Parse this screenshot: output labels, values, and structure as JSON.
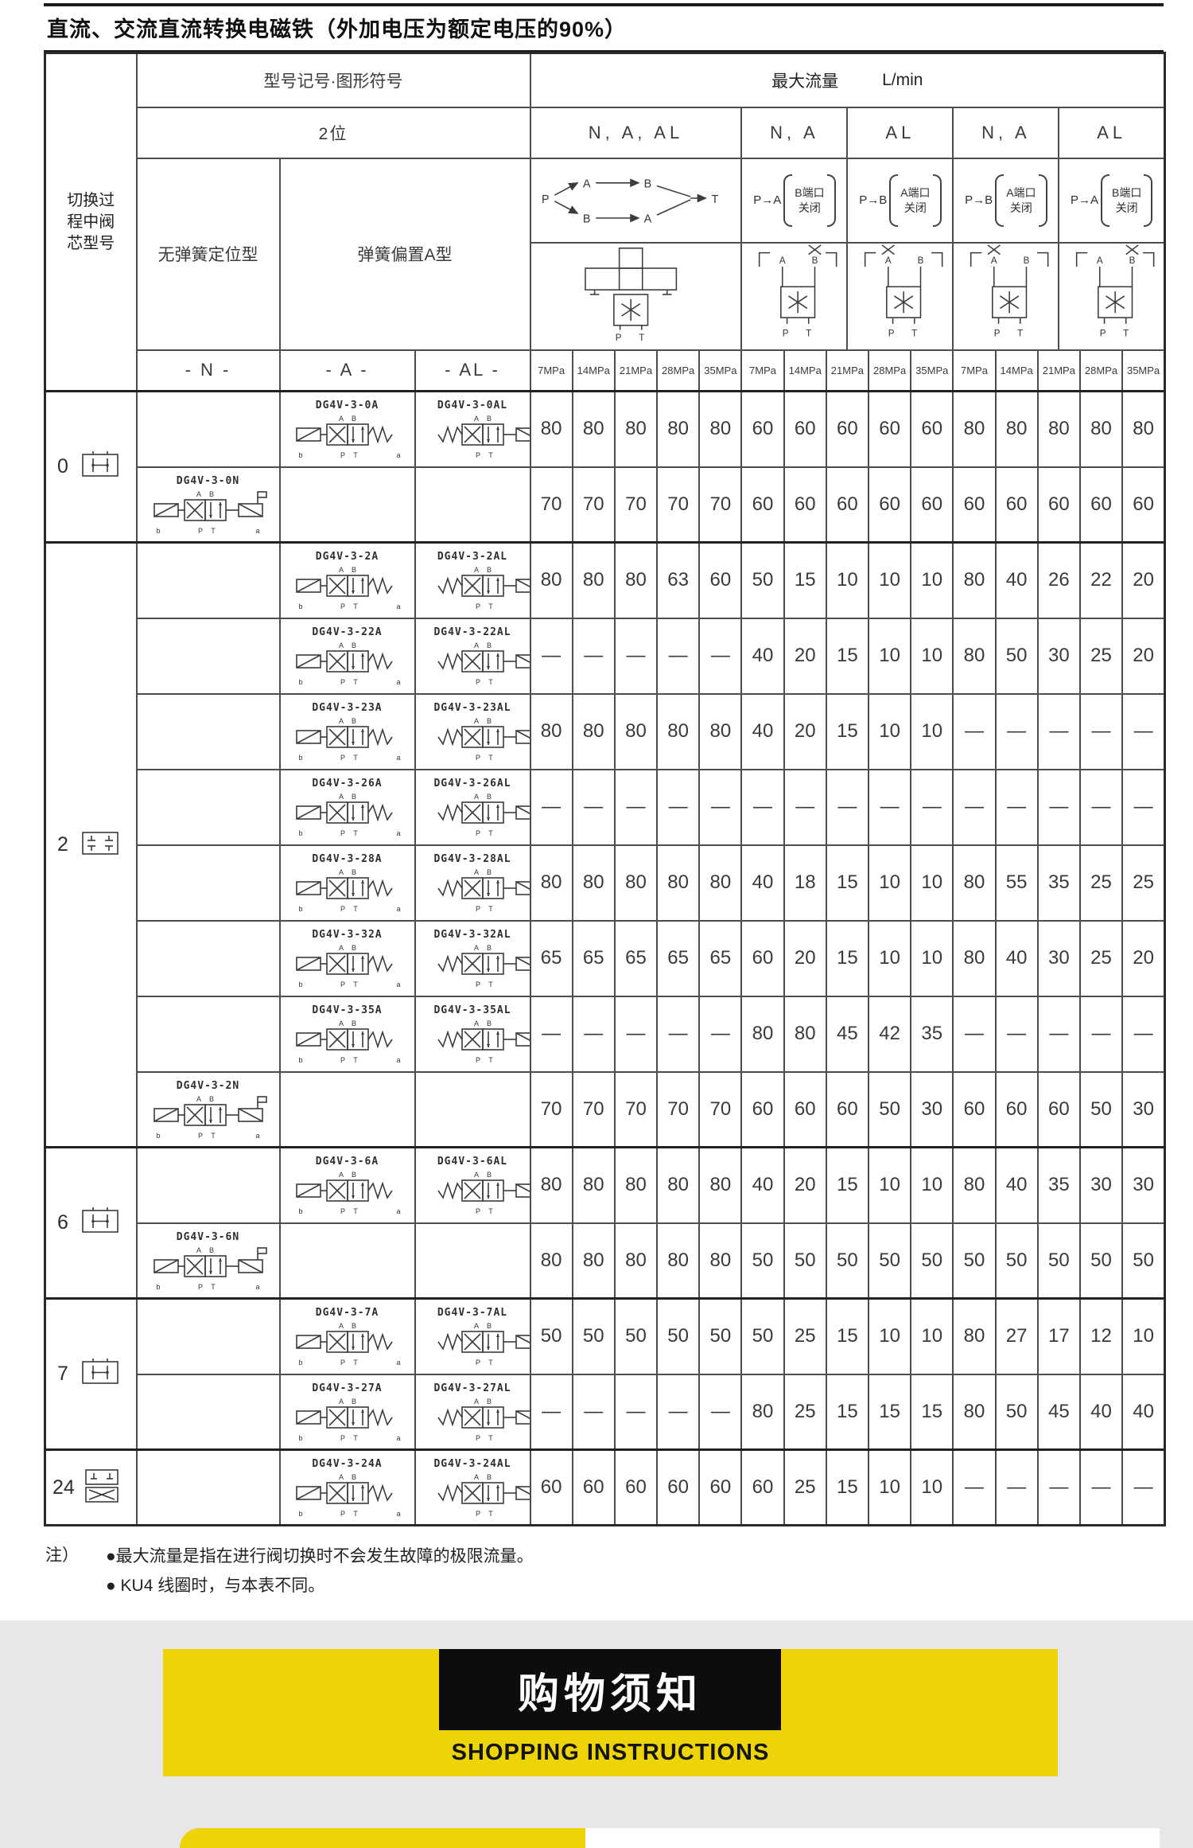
{
  "page": {
    "title": "直流、交流直流转换电磁铁（外加电压为额定电压的90%）"
  },
  "diagram_labels": {
    "P": "P",
    "A": "A",
    "B": "B",
    "T": "T",
    "b": "b",
    "a": "a",
    "AB": "A B",
    "PT": "P T"
  },
  "table": {
    "header": {
      "spool_col": "切换过程中阀芯型号",
      "model_section": "型号记号·图形符号",
      "positions": "2位",
      "flow_section": "最大流量",
      "flow_unit": "L/min",
      "no_spring": "无弹簧定位型",
      "spring_offset": "弹簧偏置A型",
      "col_n": "- N -",
      "col_a": "- A -",
      "col_al": "- AL -",
      "group1": "N, A, AL",
      "group2": "N, A",
      "group3": "AL",
      "group4": "N, A",
      "group5": "AL",
      "port_diagrams": [
        {
          "flow": "P→A",
          "port": "B端口",
          "state": "关闭"
        },
        {
          "flow": "P→B",
          "port": "A端口",
          "state": "关闭"
        },
        {
          "flow": "P→B",
          "port": "A端口",
          "state": "关闭"
        },
        {
          "flow": "P→A",
          "port": "B端口",
          "state": "关闭"
        }
      ],
      "symbol_closed_ports": [
        "B",
        "A",
        "A",
        "B"
      ],
      "pressures": [
        "7MPa",
        "14MPa",
        "21MPa",
        "28MPa",
        "35MPa",
        "7MPa",
        "14MPa",
        "21MPa",
        "28MPa",
        "35MPa",
        "7MPa",
        "14MPa",
        "21MPa",
        "28MPa",
        "35MPa"
      ]
    },
    "groups": [
      {
        "spool": "0",
        "symbol": "h",
        "rows": [
          {
            "n": "",
            "a": "DG4V-3-0A",
            "al": "DG4V-3-0AL",
            "values": [
              "80",
              "80",
              "80",
              "80",
              "80",
              "60",
              "60",
              "60",
              "60",
              "60",
              "80",
              "80",
              "80",
              "80",
              "80"
            ]
          },
          {
            "n": "DG4V-3-0N",
            "a": "",
            "al": "",
            "values": [
              "70",
              "70",
              "70",
              "70",
              "70",
              "60",
              "60",
              "60",
              "60",
              "60",
              "60",
              "60",
              "60",
              "60",
              "60"
            ]
          }
        ]
      },
      {
        "spool": "2",
        "symbol": "t",
        "rows": [
          {
            "n": "",
            "a": "DG4V-3-2A",
            "al": "DG4V-3-2AL",
            "values": [
              "80",
              "80",
              "80",
              "63",
              "60",
              "50",
              "15",
              "10",
              "10",
              "10",
              "80",
              "40",
              "26",
              "22",
              "20"
            ]
          },
          {
            "n": "",
            "a": "DG4V-3-22A",
            "al": "DG4V-3-22AL",
            "values": [
              "—",
              "—",
              "—",
              "—",
              "—",
              "40",
              "20",
              "15",
              "10",
              "10",
              "80",
              "50",
              "30",
              "25",
              "20"
            ]
          },
          {
            "n": "",
            "a": "DG4V-3-23A",
            "al": "DG4V-3-23AL",
            "values": [
              "80",
              "80",
              "80",
              "80",
              "80",
              "40",
              "20",
              "15",
              "10",
              "10",
              "—",
              "—",
              "—",
              "—",
              "—"
            ]
          },
          {
            "n": "",
            "a": "DG4V-3-26A",
            "al": "DG4V-3-26AL",
            "values": [
              "—",
              "—",
              "—",
              "—",
              "—",
              "—",
              "—",
              "—",
              "—",
              "—",
              "—",
              "—",
              "—",
              "—",
              "—"
            ]
          },
          {
            "n": "",
            "a": "DG4V-3-28A",
            "al": "DG4V-3-28AL",
            "values": [
              "80",
              "80",
              "80",
              "80",
              "80",
              "40",
              "18",
              "15",
              "10",
              "10",
              "80",
              "55",
              "35",
              "25",
              "25"
            ]
          },
          {
            "n": "",
            "a": "DG4V-3-32A",
            "al": "DG4V-3-32AL",
            "values": [
              "65",
              "65",
              "65",
              "65",
              "65",
              "60",
              "20",
              "15",
              "10",
              "10",
              "80",
              "40",
              "30",
              "25",
              "20"
            ]
          },
          {
            "n": "",
            "a": "DG4V-3-35A",
            "al": "DG4V-3-35AL",
            "values": [
              "—",
              "—",
              "—",
              "—",
              "—",
              "80",
              "80",
              "45",
              "42",
              "35",
              "—",
              "—",
              "—",
              "—",
              "—"
            ]
          },
          {
            "n": "DG4V-3-2N",
            "a": "",
            "al": "",
            "values": [
              "70",
              "70",
              "70",
              "70",
              "70",
              "60",
              "60",
              "60",
              "50",
              "30",
              "60",
              "60",
              "60",
              "50",
              "30"
            ]
          }
        ]
      },
      {
        "spool": "6",
        "symbol": "h",
        "rows": [
          {
            "n": "",
            "a": "DG4V-3-6A",
            "al": "DG4V-3-6AL",
            "values": [
              "80",
              "80",
              "80",
              "80",
              "80",
              "40",
              "20",
              "15",
              "10",
              "10",
              "80",
              "40",
              "35",
              "30",
              "30"
            ]
          },
          {
            "n": "DG4V-3-6N",
            "a": "",
            "al": "",
            "values": [
              "80",
              "80",
              "80",
              "80",
              "80",
              "50",
              "50",
              "50",
              "50",
              "50",
              "50",
              "50",
              "50",
              "50",
              "50"
            ]
          }
        ]
      },
      {
        "spool": "7",
        "symbol": "h",
        "rows": [
          {
            "n": "",
            "a": "DG4V-3-7A",
            "al": "DG4V-3-7AL",
            "values": [
              "50",
              "50",
              "50",
              "50",
              "50",
              "50",
              "25",
              "15",
              "10",
              "10",
              "80",
              "27",
              "17",
              "12",
              "10"
            ]
          },
          {
            "n": "",
            "a": "DG4V-3-27A",
            "al": "DG4V-3-27AL",
            "values": [
              "—",
              "—",
              "—",
              "—",
              "—",
              "80",
              "25",
              "15",
              "15",
              "15",
              "80",
              "50",
              "45",
              "40",
              "40"
            ]
          }
        ]
      },
      {
        "spool": "24",
        "symbol": "x2",
        "rows": [
          {
            "n": "",
            "a": "DG4V-3-24A",
            "al": "DG4V-3-24AL",
            "values": [
              "60",
              "60",
              "60",
              "60",
              "60",
              "60",
              "25",
              "15",
              "10",
              "10",
              "—",
              "—",
              "—",
              "—",
              "—"
            ]
          }
        ]
      }
    ],
    "notes": {
      "label": "注）",
      "items": [
        "●最大流量是指在进行阀切换时不会发生故障的极限流量。",
        "● KU4 线圈时，与本表不同。"
      ]
    }
  },
  "banner": {
    "title": "购物须知",
    "subtitle": "SHOPPING INSTRUCTIONS",
    "yellow": "#ecd406",
    "black": "#0d0d0d",
    "gray_bg": "#e7e7e7"
  }
}
